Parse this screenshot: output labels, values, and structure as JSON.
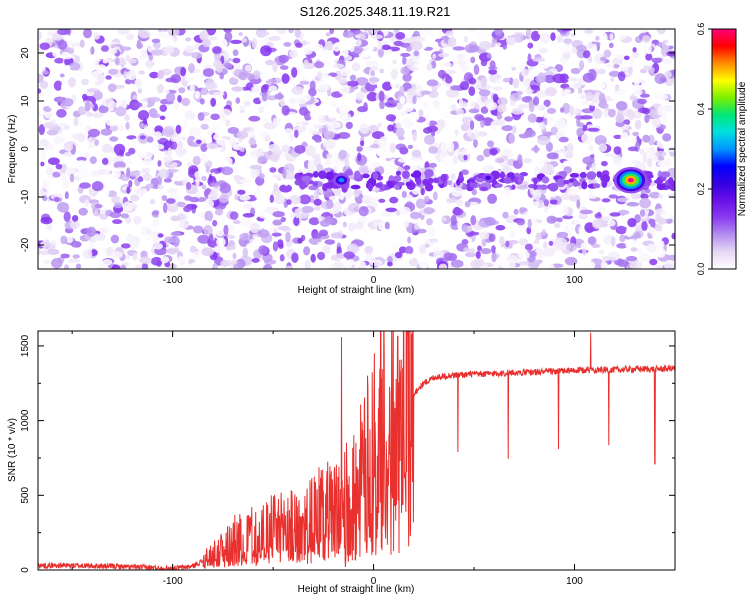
{
  "title": "S126.2025.348.11.19.R21",
  "chart_data": [
    {
      "type": "heatmap",
      "xlabel": "Height of straight line (km)",
      "ylabel": "Frequency (Hz)",
      "xlim": [
        -167,
        150
      ],
      "ylim": [
        -25,
        25
      ],
      "xticks": [
        -100,
        0,
        100
      ],
      "yticks": [
        -20,
        -10,
        0,
        10,
        20
      ],
      "colorbar": {
        "label": "Normalized spectral amplitude",
        "range": [
          0.0,
          0.6
        ],
        "ticks": [
          0.0,
          0.2,
          0.4,
          0.6
        ],
        "tick_labels": [
          "0.0",
          "0.2",
          "0.4",
          "0.6"
        ],
        "colormap": [
          "#ffffff",
          "#e6d8f5",
          "#b48ef0",
          "#8a3cf0",
          "#6a10e8",
          "#3400e0",
          "#0000ff",
          "#0096ff",
          "#00e0e0",
          "#00e676",
          "#7cf000",
          "#ffff00",
          "#ff8c00",
          "#ff0000",
          "#ff0078"
        ]
      },
      "ridge": {
        "frequency_hz": -6.5,
        "x_range": [
          -40,
          150
        ],
        "peaks": [
          {
            "x": -16,
            "y": -6.5,
            "value": 0.3
          },
          {
            "x": 57,
            "y": -6.0,
            "value": 0.27
          },
          {
            "x": 128,
            "y": -6.5,
            "value": 0.6
          },
          {
            "x": -105,
            "y": 6.5,
            "value": 0.18
          },
          {
            "x": -87,
            "y": 1.5,
            "value": 0.17
          },
          {
            "x": -106,
            "y": -18,
            "value": 0.15
          },
          {
            "x": 126,
            "y": 19,
            "value": 0.15
          }
        ]
      }
    },
    {
      "type": "line",
      "xlabel": "Height of straight line (km)",
      "ylabel": "SNR (10 * v/v)",
      "xlim": [
        -167,
        150
      ],
      "ylim": [
        0,
        1600
      ],
      "xticks": [
        -100,
        0,
        100
      ],
      "yticks": [
        0,
        500,
        1000,
        1500
      ],
      "color": "#e8312e",
      "x": [
        -167,
        -150,
        -130,
        -110,
        -100,
        -90,
        -80,
        -70,
        -60,
        -50,
        -40,
        -30,
        -25,
        -20,
        -15,
        -10,
        -5,
        0,
        5,
        10,
        15,
        20,
        25,
        30,
        40,
        50,
        60,
        70,
        80,
        90,
        100,
        110,
        120,
        130,
        140,
        150
      ],
      "y": [
        30,
        30,
        25,
        15,
        10,
        25,
        100,
        190,
        240,
        270,
        290,
        330,
        400,
        380,
        430,
        500,
        620,
        800,
        930,
        1000,
        1100,
        1180,
        1250,
        1290,
        1305,
        1310,
        1315,
        1320,
        1325,
        1330,
        1335,
        1340,
        1340,
        1345,
        1345,
        1350
      ],
      "spikes": [
        {
          "x": -16,
          "y": 1560
        },
        {
          "x": -14,
          "y": 20
        },
        {
          "x": 12,
          "y": 1565
        },
        {
          "x": 42,
          "y": 790
        },
        {
          "x": 67,
          "y": 745
        },
        {
          "x": 92,
          "y": 810
        },
        {
          "x": 108,
          "y": 1590
        },
        {
          "x": 117,
          "y": 835
        },
        {
          "x": 140,
          "y": 710
        }
      ]
    }
  ]
}
